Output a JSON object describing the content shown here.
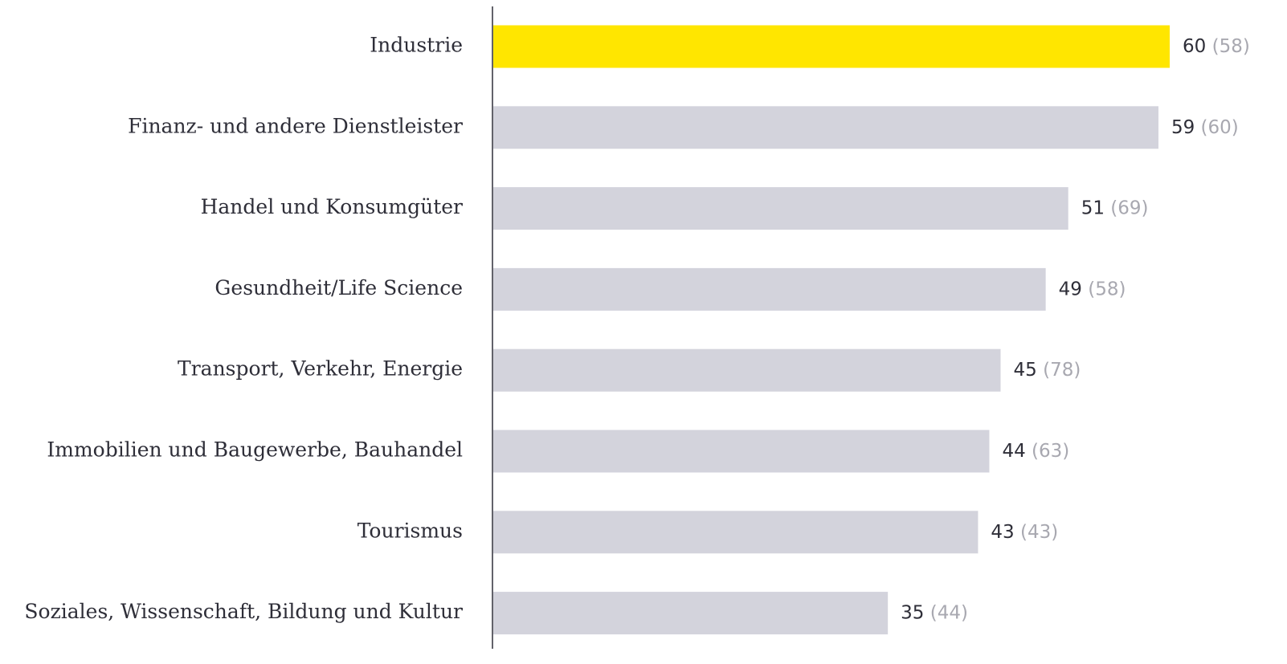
{
  "chart_data": {
    "type": "bar",
    "orientation": "horizontal",
    "categories": [
      "Industrie",
      "Finanz- und andere Dienstleister",
      "Handel und Konsumgüter",
      "Gesundheit/Life Science",
      "Transport, Verkehr, Energie",
      "Immobilien und Baugewerbe, Bauhandel",
      "Tourismus",
      "Soziales, Wissenschaft, Bildung und Kultur"
    ],
    "values": [
      60,
      59,
      51,
      49,
      45,
      44,
      43,
      35
    ],
    "colors": [
      "#ffe600",
      "#d3d3dc",
      "#d3d3dc",
      "#d3d3dc",
      "#d3d3dc",
      "#d3d3dc",
      "#d3d3dc",
      "#d3d3dc"
    ],
    "prior_values": [
      58,
      60,
      69,
      58,
      78,
      63,
      43,
      44
    ],
    "prior_value_labels": [
      "(58)",
      "(60)",
      "(69)",
      "(58)",
      "(78)",
      "(63)",
      "(43)",
      "(44)"
    ],
    "xlim": [
      0,
      60
    ]
  }
}
